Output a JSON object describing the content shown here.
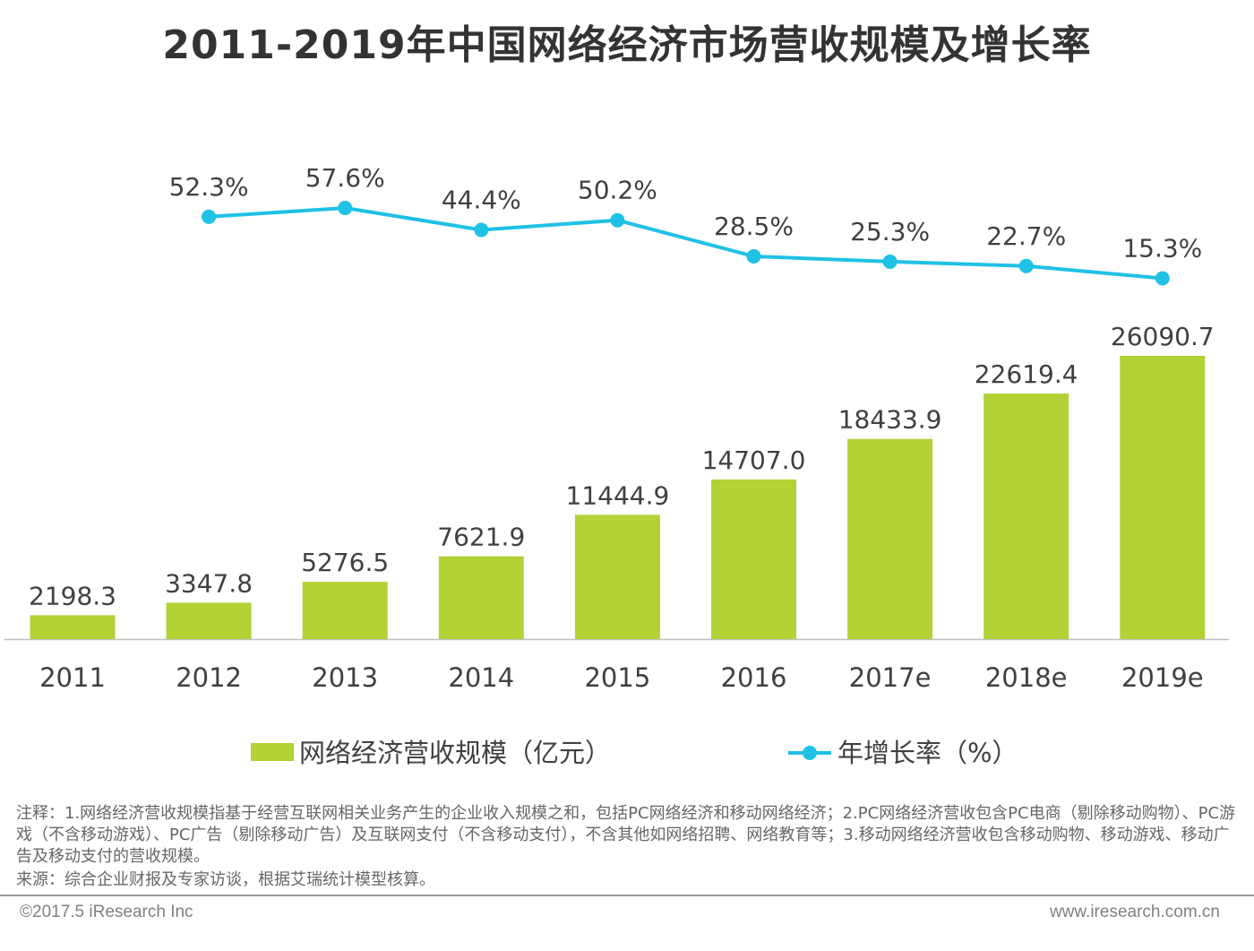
{
  "title": "2011-2019年中国网络经济市场营收规模及增长率",
  "colors": {
    "bar": "#b2d235",
    "line": "#1fc1e4",
    "axis": "#bfbfbf",
    "text": "#404040"
  },
  "legend": {
    "bar_label": "网络经济营收规模（亿元）",
    "line_label": "年增长率（%）"
  },
  "chart_data": {
    "type": "bar",
    "categories": [
      "2011",
      "2012",
      "2013",
      "2014",
      "2015",
      "2016",
      "2017e",
      "2018e",
      "2019e"
    ],
    "series": [
      {
        "name": "网络经济营收规模（亿元）",
        "type": "bar",
        "values": [
          2198.3,
          3347.8,
          5276.5,
          7621.9,
          11444.9,
          14707.0,
          18433.9,
          22619.4,
          26090.7
        ],
        "labels": [
          "2198.3",
          "3347.8",
          "5276.5",
          "7621.9",
          "11444.9",
          "14707.0",
          "18433.9",
          "22619.4",
          "26090.7"
        ]
      },
      {
        "name": "年增长率（%）",
        "type": "line",
        "values": [
          null,
          52.3,
          57.6,
          44.4,
          50.2,
          28.5,
          25.3,
          22.7,
          15.3
        ],
        "labels": [
          "",
          "52.3%",
          "57.6%",
          "44.4%",
          "50.2%",
          "28.5%",
          "25.3%",
          "22.7%",
          "15.3%"
        ]
      }
    ],
    "title": "2011-2019年中国网络经济市场营收规模及增长率",
    "legend_position": "bottom",
    "grid": false
  },
  "footnote": {
    "note": "注释：1.网络经济营收规模指基于经营互联网相关业务产生的企业收入规模之和，包括PC网络经济和移动网络经济；2.PC网络经济营收包含PC电商（剔除移动购物）、PC游戏（不含移动游戏）、PC广告（剔除移动广告）及互联网支付（不含移动支付），不含其他如网络招聘、网络教育等；3.移动网络经济营收包含移动购物、移动游戏、移动广告及移动支付的营收规模。",
    "source": "来源：综合企业财报及专家访谈，根据艾瑞统计模型核算。"
  },
  "footer": {
    "copyright": "©2017.5 iResearch Inc",
    "website": "www.iresearch.com.cn"
  }
}
